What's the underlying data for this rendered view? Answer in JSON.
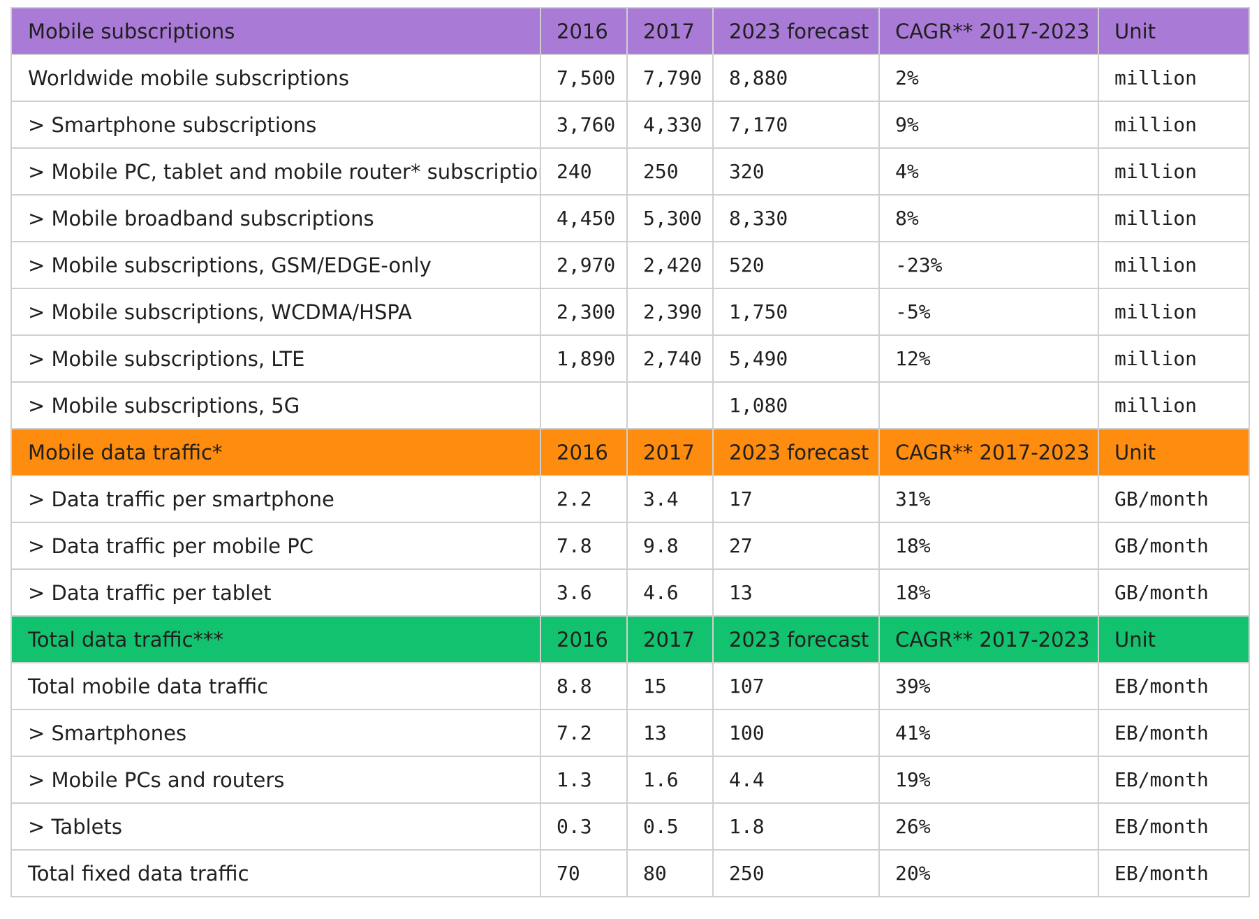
{
  "colors": {
    "subscriptions_header": "#a97ad6",
    "traffic_header": "#fe8c0f",
    "total_header": "#13c26e",
    "grid_line": "#cfcfcf"
  },
  "sections": [
    {
      "header": [
        "Mobile subscriptions",
        "2016",
        "2017",
        "2023 forecast",
        "CAGR** 2017-2023",
        "Unit"
      ],
      "rows": [
        [
          "Worldwide mobile subscriptions",
          "7,500",
          "7,790",
          "8,880",
          "2%",
          "million"
        ],
        [
          "> Smartphone subscriptions",
          "3,760",
          "4,330",
          "7,170",
          "9%",
          "million"
        ],
        [
          "> Mobile PC, tablet and mobile router* subscriptions",
          "240",
          "250",
          "320",
          "4%",
          "million"
        ],
        [
          "> Mobile broadband subscriptions",
          "4,450",
          "5,300",
          "8,330",
          "8%",
          "million"
        ],
        [
          "> Mobile subscriptions, GSM/EDGE-only",
          "2,970",
          "2,420",
          "520",
          "-23%",
          "million"
        ],
        [
          "> Mobile subscriptions, WCDMA/HSPA",
          "2,300",
          "2,390",
          "1,750",
          "-5%",
          "million"
        ],
        [
          "> Mobile subscriptions, LTE",
          "1,890",
          "2,740",
          "5,490",
          "12%",
          "million"
        ],
        [
          "> Mobile subscriptions, 5G",
          "",
          "",
          "1,080",
          "",
          "million"
        ]
      ]
    },
    {
      "header": [
        "Mobile data traffic*",
        "2016",
        "2017",
        "2023 forecast",
        "CAGR** 2017-2023",
        "Unit"
      ],
      "rows": [
        [
          "> Data traffic per smartphone",
          "2.2",
          "3.4",
          "17",
          "31%",
          "GB/month"
        ],
        [
          "> Data traffic per mobile PC",
          "7.8",
          "9.8",
          "27",
          "18%",
          "GB/month"
        ],
        [
          "> Data traffic per tablet",
          "3.6",
          "4.6",
          "13",
          "18%",
          "GB/month"
        ]
      ]
    },
    {
      "header": [
        "Total data traffic***",
        "2016",
        "2017",
        "2023 forecast",
        "CAGR** 2017-2023",
        "Unit"
      ],
      "rows": [
        [
          "Total mobile data traffic",
          "8.8",
          "15",
          "107",
          "39%",
          "EB/month"
        ],
        [
          "> Smartphones",
          "7.2",
          "13",
          "100",
          "41%",
          "EB/month"
        ],
        [
          "> Mobile PCs and routers",
          "1.3",
          "1.6",
          "4.4",
          "19%",
          "EB/month"
        ],
        [
          "> Tablets",
          "0.3",
          "0.5",
          "1.8",
          "26%",
          "EB/month"
        ],
        [
          "Total fixed data traffic",
          "70",
          "80",
          "250",
          "20%",
          "EB/month"
        ]
      ]
    }
  ]
}
